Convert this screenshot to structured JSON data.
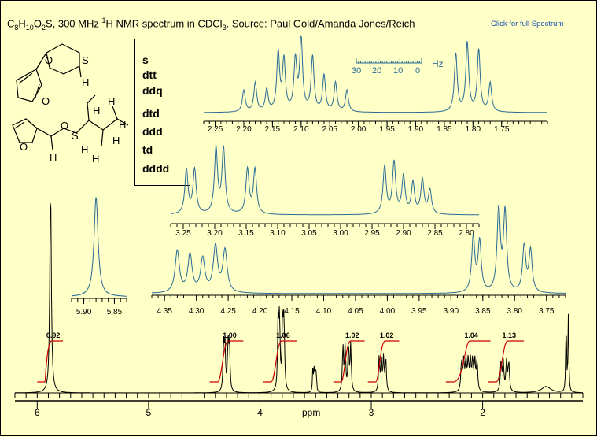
{
  "header": {
    "formula_parts": [
      "C",
      "8",
      "H",
      "10",
      "O",
      "2",
      "S"
    ],
    "desc_prefix": ", 300 MHz ",
    "desc_sup": "1",
    "desc_middle": "H NMR spectrum in CDCl",
    "desc_sub": "3",
    "desc_source": ". Source: Paul Gold/Amanda Jones/Reich",
    "full_spectrum_link": "Click for full Spectrum"
  },
  "multiplicities": [
    "s",
    "dtt",
    "ddq",
    "dtd",
    "ddd",
    "td",
    "dddd"
  ],
  "structure_atoms": {
    "top": [
      "O",
      "S",
      "O",
      "H"
    ],
    "bottom": [
      "O",
      "S",
      "O",
      "H",
      "H",
      "H",
      "H",
      "H",
      "H",
      "H"
    ]
  },
  "colors": {
    "background": "#ffffc8",
    "inset_trace": "#2a6c96",
    "main_trace": "#000000",
    "integral": "#cc0000",
    "link": "#1c4fb5"
  },
  "hz_scale": {
    "ticks": [
      "30",
      "20",
      "10",
      "0"
    ],
    "unit": "Hz"
  },
  "chart_data": [
    {
      "type": "line",
      "name": "main-spectrum",
      "xlabel": "ppm",
      "xlim": [
        6.2,
        1.1
      ],
      "x_ticks": [
        "6",
        "5",
        "4",
        "3",
        "2"
      ],
      "peaks": [
        {
          "ppm": 5.88,
          "height": 1.0,
          "width": 0.008,
          "splitting": []
        },
        {
          "ppm": 4.3,
          "height": 0.22,
          "width": 0.006,
          "splitting": [
            0.012,
            0.04
          ]
        },
        {
          "ppm": 3.81,
          "height": 0.33,
          "width": 0.006,
          "splitting": [
            0.012,
            0.04
          ]
        },
        {
          "ppm": 3.51,
          "height": 0.1,
          "width": 0.004,
          "splitting": [
            0.01,
            0.02
          ]
        },
        {
          "ppm": 3.22,
          "height": 0.22,
          "width": 0.006,
          "splitting": [
            0.02,
            0.05
          ]
        },
        {
          "ppm": 2.9,
          "height": 0.16,
          "width": 0.006,
          "splitting": [
            0.02,
            0.04
          ]
        },
        {
          "ppm": 2.12,
          "height": 0.14,
          "width": 0.007,
          "splitting": [
            0.02,
            0.04,
            0.08
          ]
        },
        {
          "ppm": 1.8,
          "height": 0.14,
          "width": 0.007,
          "splitting": [
            0.02,
            0.05
          ]
        },
        {
          "ppm": 1.43,
          "height": 0.03,
          "width": 0.05,
          "splitting": []
        },
        {
          "ppm": 1.24,
          "height": 0.36,
          "width": 0.004,
          "splitting": [
            0.02
          ]
        }
      ],
      "integrals": [
        {
          "label": "0.92",
          "start": 5.93,
          "end": 5.84
        },
        {
          "label": "1.00",
          "start": 4.38,
          "end": 4.22
        },
        {
          "label": "1.06",
          "start": 3.9,
          "end": 3.74
        },
        {
          "label": "1.02",
          "start": 3.27,
          "end": 3.13
        },
        {
          "label": "1.02",
          "start": 2.96,
          "end": 2.82
        },
        {
          "label": "1.04",
          "start": 2.26,
          "end": 2.0
        },
        {
          "label": "1.13",
          "start": 1.88,
          "end": 1.7
        }
      ]
    },
    {
      "type": "line",
      "name": "inset-1",
      "xlim": [
        2.27,
        1.67
      ],
      "x_ticks": [
        "2.25",
        "2.20",
        "2.15",
        "2.10",
        "2.05",
        "2.00",
        "1.95",
        "1.90",
        "1.85",
        "1.80",
        "1.75"
      ],
      "peaks": [
        {
          "ppm": 2.2,
          "height": 0.3,
          "width": 0.003,
          "splitting": []
        },
        {
          "ppm": 2.18,
          "height": 0.4,
          "width": 0.003,
          "splitting": []
        },
        {
          "ppm": 2.16,
          "height": 0.3,
          "width": 0.003,
          "splitting": []
        },
        {
          "ppm": 2.14,
          "height": 0.8,
          "width": 0.003,
          "splitting": []
        },
        {
          "ppm": 2.13,
          "height": 0.7,
          "width": 0.003,
          "splitting": []
        },
        {
          "ppm": 2.11,
          "height": 0.7,
          "width": 0.003,
          "splitting": []
        },
        {
          "ppm": 2.1,
          "height": 1.0,
          "width": 0.003,
          "splitting": []
        },
        {
          "ppm": 2.08,
          "height": 0.75,
          "width": 0.003,
          "splitting": []
        },
        {
          "ppm": 2.06,
          "height": 0.5,
          "width": 0.003,
          "splitting": []
        },
        {
          "ppm": 2.04,
          "height": 0.4,
          "width": 0.003,
          "splitting": []
        },
        {
          "ppm": 2.02,
          "height": 0.3,
          "width": 0.003,
          "splitting": []
        },
        {
          "ppm": 1.83,
          "height": 0.8,
          "width": 0.003,
          "splitting": []
        },
        {
          "ppm": 1.81,
          "height": 0.95,
          "width": 0.003,
          "splitting": []
        },
        {
          "ppm": 1.79,
          "height": 0.85,
          "width": 0.003,
          "splitting": []
        },
        {
          "ppm": 1.77,
          "height": 0.4,
          "width": 0.003,
          "splitting": []
        }
      ]
    },
    {
      "type": "line",
      "name": "inset-2",
      "xlim": [
        3.27,
        2.78
      ],
      "x_ticks": [
        "3.25",
        "3.20",
        "3.15",
        "3.10",
        "3.05",
        "3.00",
        "2.95",
        "2.90",
        "2.85",
        "2.80"
      ],
      "peaks": [
        {
          "ppm": 3.245,
          "height": 0.65,
          "width": 0.003,
          "splitting": []
        },
        {
          "ppm": 3.232,
          "height": 0.65,
          "width": 0.003,
          "splitting": []
        },
        {
          "ppm": 3.198,
          "height": 0.95,
          "width": 0.003,
          "splitting": []
        },
        {
          "ppm": 3.186,
          "height": 0.95,
          "width": 0.003,
          "splitting": []
        },
        {
          "ppm": 3.148,
          "height": 0.65,
          "width": 0.003,
          "splitting": []
        },
        {
          "ppm": 3.136,
          "height": 0.65,
          "width": 0.003,
          "splitting": []
        },
        {
          "ppm": 2.93,
          "height": 0.7,
          "width": 0.003,
          "splitting": []
        },
        {
          "ppm": 2.915,
          "height": 0.75,
          "width": 0.003,
          "splitting": []
        },
        {
          "ppm": 2.9,
          "height": 0.55,
          "width": 0.003,
          "splitting": []
        },
        {
          "ppm": 2.885,
          "height": 0.45,
          "width": 0.003,
          "splitting": []
        },
        {
          "ppm": 2.87,
          "height": 0.5,
          "width": 0.003,
          "splitting": []
        },
        {
          "ppm": 2.858,
          "height": 0.35,
          "width": 0.003,
          "splitting": []
        }
      ]
    },
    {
      "type": "line",
      "name": "inset-3",
      "xlim": [
        4.37,
        3.72
      ],
      "x_ticks": [
        "4.35",
        "4.30",
        "4.25",
        "4.20",
        "4.15",
        "4.10",
        "4.05",
        "4.00",
        "3.95",
        "3.90",
        "3.85",
        "3.80",
        "3.75"
      ],
      "peaks": [
        {
          "ppm": 4.33,
          "height": 0.5,
          "width": 0.004,
          "splitting": []
        },
        {
          "ppm": 4.31,
          "height": 0.45,
          "width": 0.004,
          "splitting": []
        },
        {
          "ppm": 4.29,
          "height": 0.4,
          "width": 0.004,
          "splitting": []
        },
        {
          "ppm": 4.27,
          "height": 0.55,
          "width": 0.004,
          "splitting": []
        },
        {
          "ppm": 4.255,
          "height": 0.5,
          "width": 0.004,
          "splitting": []
        },
        {
          "ppm": 3.865,
          "height": 0.65,
          "width": 0.003,
          "splitting": []
        },
        {
          "ppm": 3.855,
          "height": 0.6,
          "width": 0.003,
          "splitting": []
        },
        {
          "ppm": 3.825,
          "height": 1.0,
          "width": 0.003,
          "splitting": []
        },
        {
          "ppm": 3.815,
          "height": 0.95,
          "width": 0.003,
          "splitting": []
        },
        {
          "ppm": 3.785,
          "height": 0.55,
          "width": 0.003,
          "splitting": []
        },
        {
          "ppm": 3.775,
          "height": 0.5,
          "width": 0.003,
          "splitting": []
        }
      ]
    },
    {
      "type": "line",
      "name": "inset-4",
      "xlim": [
        5.92,
        5.83
      ],
      "x_ticks": [
        "5.90",
        "5.85"
      ],
      "peaks": [
        {
          "ppm": 5.88,
          "height": 1.0,
          "width": 0.004,
          "splitting": []
        }
      ]
    }
  ]
}
